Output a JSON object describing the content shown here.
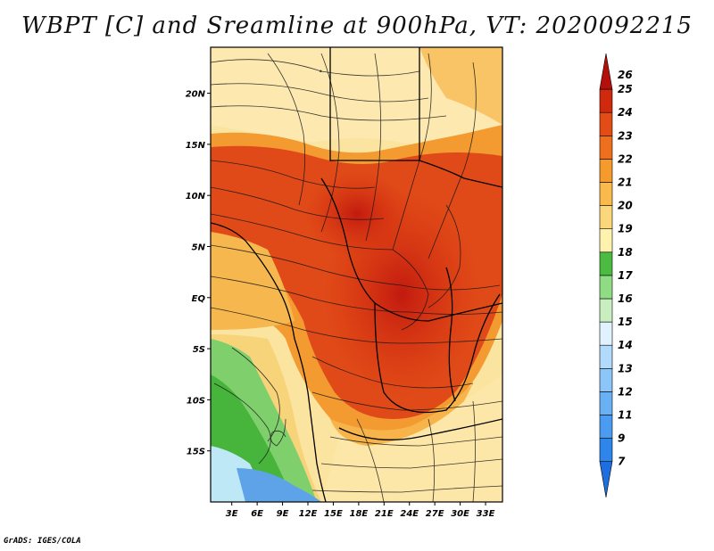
{
  "title": "WBPT [C] and Sreamline at 900hPa, VT: 2020092215",
  "footer": "GrADS: IGES/COLA",
  "map": {
    "lat_labels": [
      "20N",
      "15N",
      "10N",
      "5N",
      "EQ",
      "5S",
      "10S",
      "15S"
    ],
    "lat_values": [
      20,
      15,
      10,
      5,
      0,
      -5,
      -10,
      -15
    ],
    "lon_labels": [
      "3E",
      "6E",
      "9E",
      "12E",
      "15E",
      "18E",
      "21E",
      "24E",
      "27E",
      "30E",
      "33E"
    ],
    "lon_values": [
      3,
      6,
      9,
      12,
      15,
      18,
      21,
      24,
      27,
      30,
      33
    ],
    "lat_range": [
      -20,
      24.5
    ],
    "lon_range": [
      0.5,
      35
    ]
  },
  "colorbar": {
    "labels": [
      "7",
      "9",
      "11",
      "12",
      "13",
      "14",
      "15",
      "16",
      "17",
      "18",
      "19",
      "20",
      "21",
      "22",
      "23",
      "24",
      "25",
      "26"
    ],
    "colors": [
      "#1e6ee0",
      "#2f86ea",
      "#4b9cf0",
      "#6ab0f5",
      "#8cc6f8",
      "#b2dafb",
      "#dff2fd",
      "#c9efc0",
      "#8fdc84",
      "#4cbb42",
      "#fff2ad",
      "#fcd67a",
      "#f9b94d",
      "#f59a2c",
      "#ee6f1d",
      "#e34b17",
      "#cf2a0e",
      "#b3100b"
    ]
  }
}
